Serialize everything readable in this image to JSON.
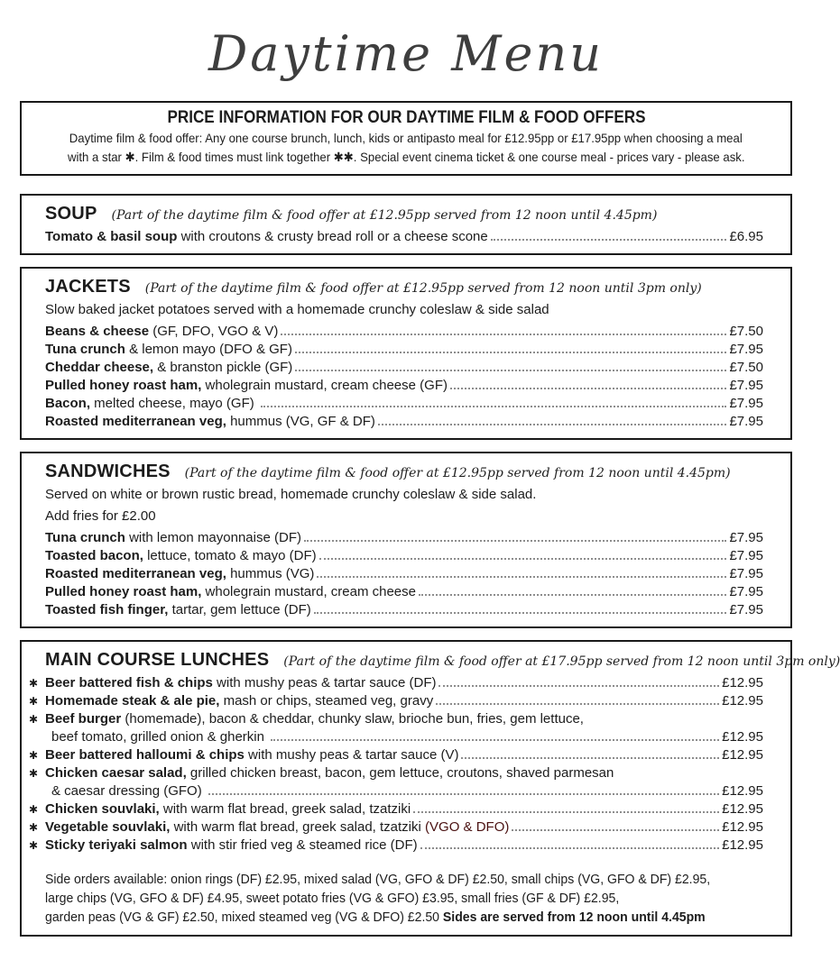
{
  "title": "Daytime Menu",
  "star_char": "✱",
  "colors": {
    "ink": "#1c1c1c",
    "highlight_red": "#4a1111"
  },
  "price_info": {
    "heading": "PRICE INFORMATION FOR OUR DAYTIME FILM & FOOD OFFERS",
    "line1": "Daytime film & food offer: Any one course brunch, lunch, kids or antipasto meal for £12.95pp or £17.95pp when choosing a meal",
    "line2": "with a star ✱. Film & food times must link together ✱✱. Special event cinema ticket & one course meal - prices vary - please ask."
  },
  "sections": [
    {
      "id": "soup",
      "name": "SOUP",
      "subtitle": "(Part of the daytime film & food offer at £12.95pp served from 12 noon until 4.45pm)",
      "intro": [],
      "items": [
        {
          "name": "Tomato & basil soup",
          "desc": " with croutons & crusty bread roll or a cheese scone",
          "price": "£6.95"
        }
      ]
    },
    {
      "id": "jackets",
      "name": "JACKETS",
      "subtitle": "(Part of the daytime film & food offer at £12.95pp served from 12 noon until 3pm only)",
      "intro": [
        "Slow baked jacket potatoes served with a homemade crunchy coleslaw & side salad"
      ],
      "items": [
        {
          "name": "Beans & cheese",
          "desc": " (GF, DFO, VGO & V)",
          "price": "£7.50"
        },
        {
          "name": "Tuna crunch",
          "desc": " & lemon mayo (DFO & GF)",
          "price": "£7.95"
        },
        {
          "name": "Cheddar cheese,",
          "desc": " & branston pickle (GF)",
          "price": "£7.50"
        },
        {
          "name": "Pulled honey roast ham,",
          "desc": " wholegrain mustard, cream cheese (GF)",
          "price": "£7.95"
        },
        {
          "name": "Bacon,",
          "desc": " melted cheese, mayo (GF) ",
          "price": "£7.95"
        },
        {
          "name": "Roasted mediterranean veg,",
          "desc": " hummus (VG, GF & DF)",
          "price": "£7.95"
        }
      ]
    },
    {
      "id": "sandwiches",
      "name": "SANDWICHES",
      "subtitle": "(Part of the daytime film & food offer at £12.95pp served from 12 noon until 4.45pm)",
      "intro": [
        "Served on white or brown rustic bread, homemade crunchy coleslaw & side salad.",
        "Add fries for £2.00"
      ],
      "items": [
        {
          "name": "Tuna crunch",
          "desc": " with lemon mayonnaise (DF)",
          "price": "£7.95"
        },
        {
          "name": "Toasted bacon,",
          "desc": " lettuce, tomato & mayo (DF)",
          "price": "£7.95"
        },
        {
          "name": "Roasted mediterranean veg,",
          "desc": " hummus (VG)",
          "price": "£7.95"
        },
        {
          "name": "Pulled honey roast ham,",
          "desc": " wholegrain mustard, cream cheese",
          "price": "£7.95"
        },
        {
          "name": "Toasted fish finger,",
          "desc": " tartar, gem lettuce (DF)",
          "price": "£7.95"
        }
      ]
    },
    {
      "id": "main-course-lunches",
      "name": "MAIN COURSE LUNCHES",
      "subtitle": "(Part of the daytime film & food offer at £17.95pp served from 12 noon until 3pm only)",
      "intro": [],
      "items": [
        {
          "star": true,
          "name": "Beer battered fish & chips",
          "desc": " with mushy peas & tartar sauce (DF)",
          "price": "£12.95"
        },
        {
          "star": true,
          "name": "Homemade steak & ale pie,",
          "desc": " mash or chips, steamed veg, gravy",
          "price": "£12.95"
        },
        {
          "star": true,
          "name": "Beef burger",
          "desc": " (homemade), bacon & cheddar, chunky slaw, brioche bun, fries, gem lettuce,",
          "desc2": "beef tomato, grilled onion & gherkin ",
          "price": "£12.95"
        },
        {
          "star": true,
          "name": "Beer battered halloumi & chips",
          "desc": " with mushy peas & tartar sauce (V)",
          "price": "£12.95"
        },
        {
          "star": true,
          "name": "Chicken caesar salad,",
          "desc": " grilled chicken breast, bacon, gem lettuce, croutons, shaved parmesan",
          "desc2": "& caesar dressing (GFO) ",
          "price": "£12.95"
        },
        {
          "star": true,
          "name": "Chicken souvlaki,",
          "desc": " with warm flat bread, greek salad, tzatziki",
          "price": "£12.95"
        },
        {
          "star": true,
          "name": "Vegetable souvlaki,",
          "desc": " with warm flat bread, greek salad, tzatziki ",
          "red": "(VGO & DFO)",
          "price": "£12.95"
        },
        {
          "star": true,
          "name": "Sticky teriyaki salmon",
          "desc": " with stir fried veg & steamed rice (DF)",
          "price": "£12.95"
        }
      ],
      "footer": {
        "lines": [
          "Side orders available: onion rings (DF) £2.95, mixed salad (VG, GFO & DF) £2.50, small chips (VG, GFO & DF) £2.95,",
          "large chips (VG, GFO & DF) £4.95, sweet potato fries (VG & GFO) £3.95, small fries (GF & DF) £2.95,"
        ],
        "last_line": "garden peas (VG & GF) £2.50, mixed steamed veg (VG & DFO) £2.50 ",
        "last_line_bold": "Sides are served from 12 noon until 4.45pm"
      }
    }
  ]
}
